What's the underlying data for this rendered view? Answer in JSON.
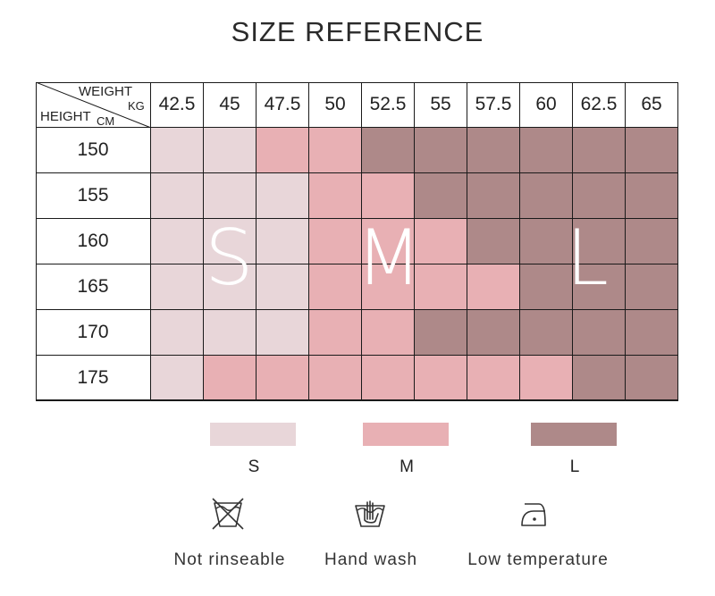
{
  "title": "SIZE REFERENCE",
  "corner": {
    "weight": "WEIGHT",
    "kg": "KG",
    "height": "HEIGHT",
    "cm": "CM"
  },
  "weights": [
    "42.5",
    "45",
    "47.5",
    "50",
    "52.5",
    "55",
    "57.5",
    "60",
    "62.5",
    "65"
  ],
  "heights": [
    "150",
    "155",
    "160",
    "165",
    "170",
    "175"
  ],
  "grid": [
    [
      "S",
      "S",
      "M",
      "M",
      "L",
      "L",
      "L",
      "L",
      "L",
      "L"
    ],
    [
      "S",
      "S",
      "S",
      "M",
      "M",
      "L",
      "L",
      "L",
      "L",
      "L"
    ],
    [
      "S",
      "S",
      "S",
      "M",
      "M",
      "M",
      "L",
      "L",
      "L",
      "L"
    ],
    [
      "S",
      "S",
      "S",
      "M",
      "M",
      "M",
      "M",
      "L",
      "L",
      "L"
    ],
    [
      "S",
      "S",
      "S",
      "M",
      "M",
      "L",
      "L",
      "L",
      "L",
      "L"
    ],
    [
      "S",
      "M",
      "M",
      "M",
      "M",
      "M",
      "M",
      "M",
      "L",
      "L"
    ]
  ],
  "overlay_letters": [
    "S",
    "M",
    "L"
  ],
  "colors": {
    "S": "#e8d6d9",
    "M": "#e8b0b4",
    "L": "#ae8989"
  },
  "legend": [
    {
      "label": "S",
      "color": "#e8d6d9"
    },
    {
      "label": "M",
      "color": "#e8b0b4"
    },
    {
      "label": "L",
      "color": "#ae8989"
    }
  ],
  "care": [
    {
      "icon": "no-rinse-icon",
      "label": "Not rinseable"
    },
    {
      "icon": "hand-wash-icon",
      "label": "Hand wash"
    },
    {
      "icon": "low-temperature-iron-icon",
      "label": "Low temperature"
    }
  ]
}
